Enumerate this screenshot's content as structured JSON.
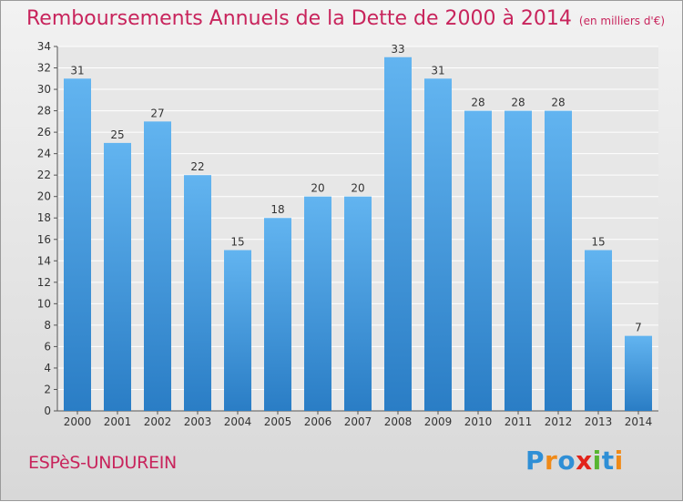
{
  "header": {
    "title": "Remboursements Annuels de la Dette de 2000 à 2014",
    "unit": "(en milliers d'€)"
  },
  "footer": {
    "commune": "ESPèS-UNDUREIN",
    "logo": "Proxiti"
  },
  "colors": {
    "title": "#c8245c",
    "bar_top": "#62b4f0",
    "bar_bottom": "#2a7dc5"
  },
  "chart_data": {
    "type": "bar",
    "title": "Remboursements Annuels de la Dette de 2000 à 2014",
    "subtitle": "(en milliers d'€)",
    "categories": [
      "2000",
      "2001",
      "2002",
      "2003",
      "2004",
      "2005",
      "2006",
      "2007",
      "2008",
      "2009",
      "2010",
      "2011",
      "2012",
      "2013",
      "2014"
    ],
    "values": [
      31,
      25,
      27,
      22,
      15,
      18,
      20,
      20,
      33,
      31,
      28,
      28,
      28,
      15,
      7
    ],
    "ylim": [
      0,
      34
    ],
    "yticks": [
      0,
      2,
      4,
      6,
      8,
      10,
      12,
      14,
      16,
      18,
      20,
      22,
      24,
      26,
      28,
      30,
      32,
      34
    ],
    "grid": true,
    "legend": "none"
  }
}
